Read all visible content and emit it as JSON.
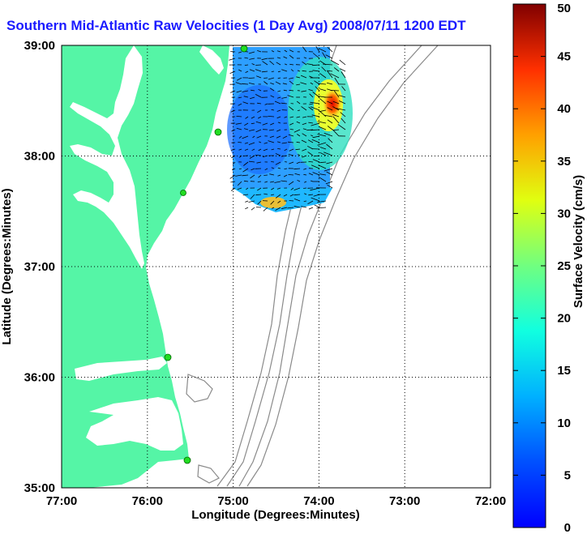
{
  "title": "Southern Mid-Atlantic Raw Velocities (1 Day Avg) 2008/07/11 1200 EDT",
  "map": {
    "xlabel": "Longitude (Degrees:Minutes)",
    "ylabel": "Latitude (Degrees:Minutes)",
    "x_ticks": [
      "77:00",
      "76:00",
      "75:00",
      "74:00",
      "73:00",
      "72:00"
    ],
    "y_ticks": [
      "39:00",
      "38:00",
      "37:00",
      "36:00",
      "35:00"
    ],
    "lon_range": [
      -77,
      -72
    ],
    "lat_range": [
      35,
      39
    ],
    "grid": "dotted",
    "land_color": "#55f5a6",
    "contour_color": "#8a8a8a",
    "station_color": "#22dd22"
  },
  "colorbar": {
    "label": "Surface Velocity (cm/s)",
    "min": 0,
    "max": 50,
    "ticks": [
      "0",
      "5",
      "10",
      "15",
      "20",
      "25",
      "30",
      "35",
      "40",
      "45",
      "50"
    ],
    "colormap": "jet"
  }
}
